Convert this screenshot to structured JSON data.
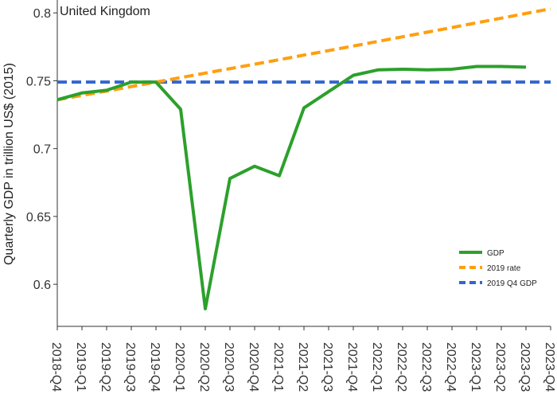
{
  "chart_data": {
    "type": "line",
    "title": "United Kingdom",
    "ylabel": "Quarterly GDP in trillion US$ (2015)",
    "xlabel": "",
    "categories": [
      "2018-Q4",
      "2019-Q1",
      "2019-Q2",
      "2019-Q3",
      "2019-Q4",
      "2020-Q1",
      "2020-Q2",
      "2020-Q3",
      "2020-Q4",
      "2021-Q1",
      "2021-Q2",
      "2021-Q3",
      "2021-Q4",
      "2022-Q1",
      "2022-Q2",
      "2022-Q3",
      "2022-Q4",
      "2023-Q1",
      "2023-Q2",
      "2023-Q3",
      "2023-Q4"
    ],
    "ylim": [
      0.569,
      0.8095
    ],
    "yticks": [
      0.6,
      0.65,
      0.7,
      0.75,
      0.8
    ],
    "ytick_labels": [
      "0.6",
      "0.65",
      "0.7",
      "0.75",
      "0.8"
    ],
    "grid": false,
    "legend_position": "bottom-right",
    "series": [
      {
        "name": "GDP",
        "color": "#2ca02c",
        "style": "solid",
        "values": [
          0.736,
          0.741,
          0.743,
          0.749,
          0.749,
          0.729,
          0.582,
          0.678,
          0.687,
          0.68,
          0.73,
          0.742,
          0.754,
          0.758,
          0.7585,
          0.758,
          0.7585,
          0.7605,
          0.7605,
          0.76,
          null
        ]
      },
      {
        "name": "2019 rate",
        "color": "#ff9f0f",
        "style": "dashed",
        "values": [
          0.736,
          0.7392,
          0.7424,
          0.7457,
          0.749,
          0.7523,
          0.7556,
          0.7589,
          0.7622,
          0.7655,
          0.7689,
          0.7722,
          0.7756,
          0.779,
          0.7824,
          0.7858,
          0.7892,
          0.7927,
          0.7961,
          0.7996,
          0.803
        ]
      },
      {
        "name": "2019 Q4 GDP",
        "color": "#3366cc",
        "style": "dashed",
        "values": [
          0.749,
          0.749,
          0.749,
          0.749,
          0.749,
          0.749,
          0.749,
          0.749,
          0.749,
          0.749,
          0.749,
          0.749,
          0.749,
          0.749,
          0.749,
          0.749,
          0.749,
          0.749,
          0.749,
          0.749,
          0.749
        ]
      }
    ]
  }
}
